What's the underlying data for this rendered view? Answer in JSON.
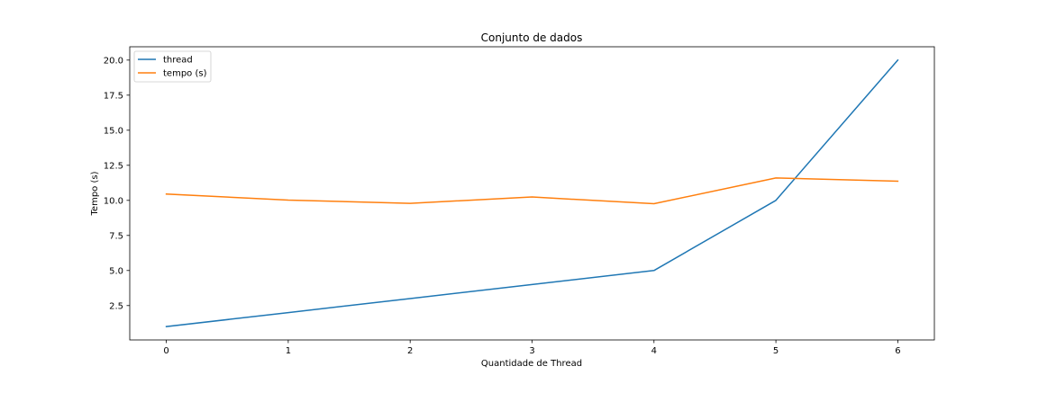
{
  "chart_data": {
    "type": "line",
    "title": "Conjunto de dados",
    "xlabel": "Quantidade de Thread",
    "ylabel": "Tempo (s)",
    "x": [
      0,
      1,
      2,
      3,
      4,
      5,
      6
    ],
    "series": [
      {
        "name": "thread",
        "color": "#1f77b4",
        "values": [
          1,
          2,
          3,
          4,
          5,
          10,
          20
        ]
      },
      {
        "name": "tempo (s)",
        "color": "#ff7f0e",
        "values": [
          10.45,
          10.02,
          9.79,
          10.24,
          9.76,
          11.6,
          11.37
        ]
      }
    ],
    "xticks": [
      "0",
      "1",
      "2",
      "3",
      "4",
      "5",
      "6"
    ],
    "yticks": [
      "2.5",
      "5.0",
      "7.5",
      "10.0",
      "12.5",
      "15.0",
      "17.5",
      "20.0"
    ],
    "xlim": [
      -0.3,
      6.3
    ],
    "ylim": [
      0.05,
      20.95
    ],
    "grid": false,
    "legend_position": "top-left"
  }
}
